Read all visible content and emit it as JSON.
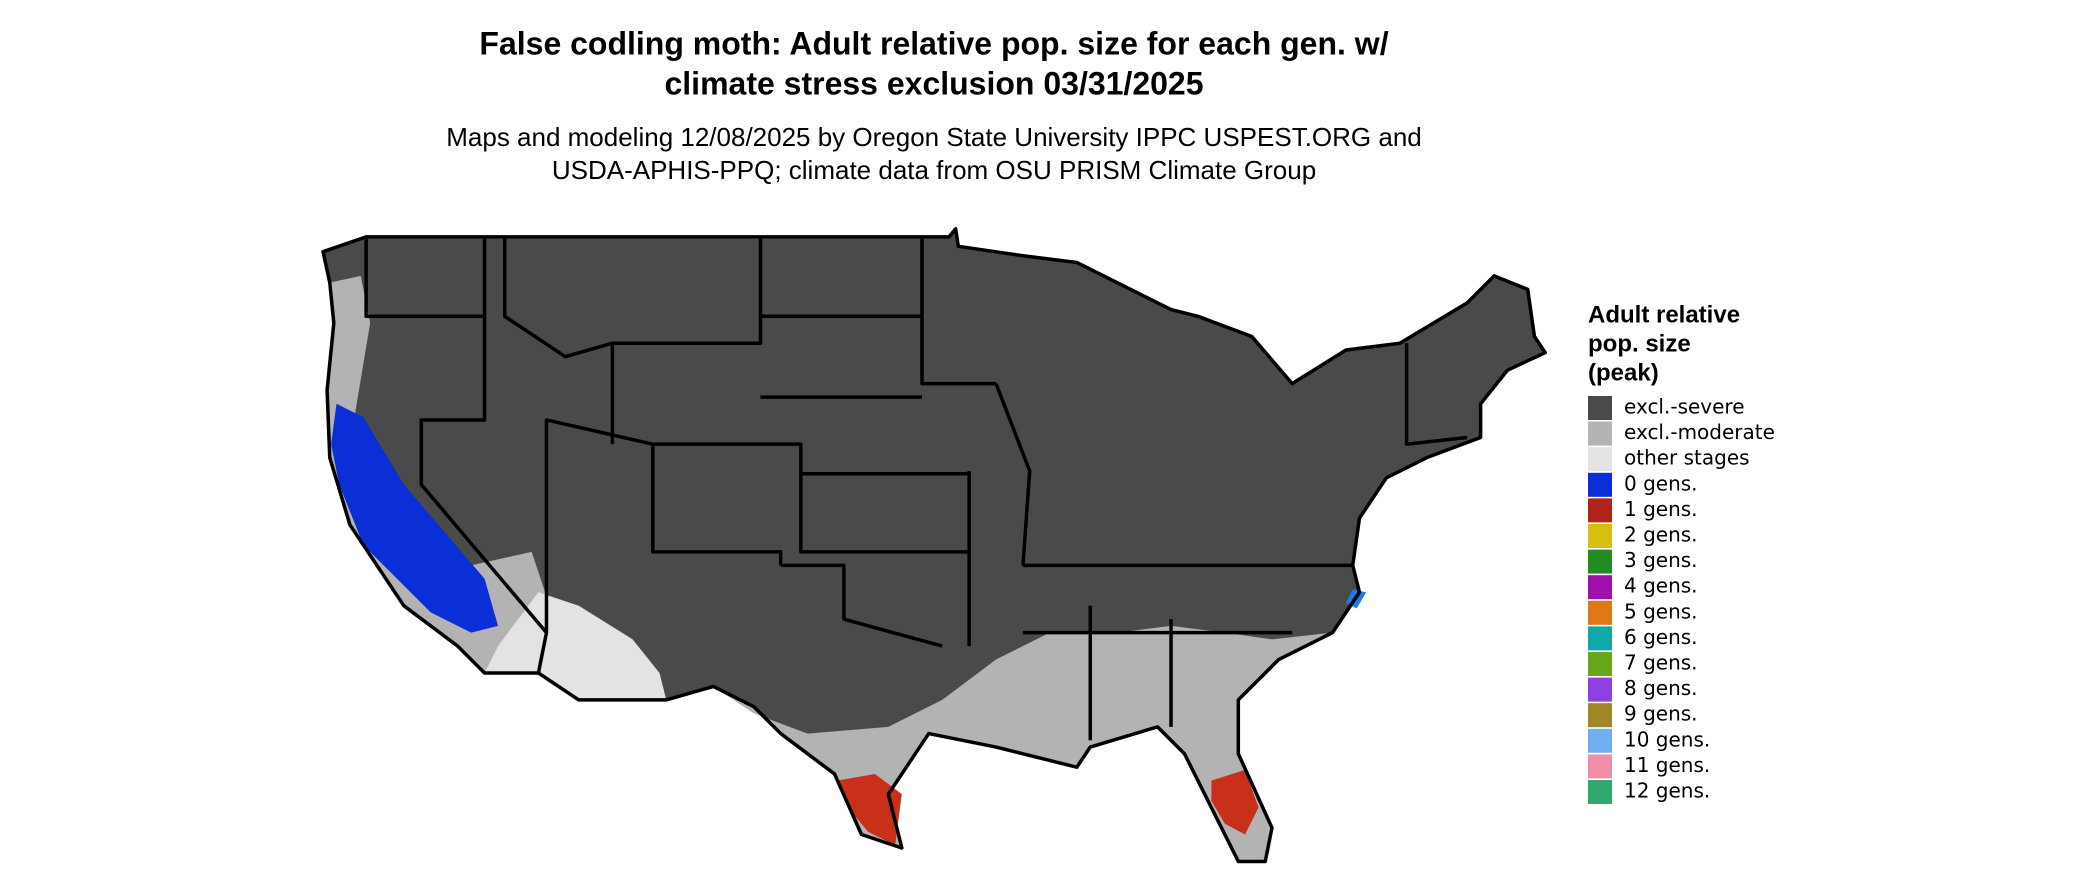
{
  "header": {
    "title": [
      "False codling moth: Adult relative pop. size for each gen. w/",
      "climate stress exclusion 03/31/2025"
    ],
    "subtitle": [
      "Maps and modeling 12/08/2025 by Oregon State University IPPC USPEST.ORG and",
      "USDA-APHIS-PPQ; climate data from OSU PRISM Climate Group"
    ]
  },
  "legend": {
    "title": [
      "Adult relative",
      "pop. size",
      "(peak)"
    ],
    "items": [
      {
        "label": "excl.-severe",
        "color": "#4a4a4a"
      },
      {
        "label": "excl.-moderate",
        "color": "#b3b3b3"
      },
      {
        "label": "other stages",
        "color": "#e3e3e3"
      },
      {
        "label": "0 gens.",
        "color": "#0a2fd6"
      },
      {
        "label": "1 gens.",
        "color": "#b0221a"
      },
      {
        "label": "2 gens.",
        "color": "#d8c010"
      },
      {
        "label": "3 gens.",
        "color": "#228b22"
      },
      {
        "label": "4 gens.",
        "color": "#a010a8"
      },
      {
        "label": "5 gens.",
        "color": "#e07818"
      },
      {
        "label": "6 gens.",
        "color": "#10a8a8"
      },
      {
        "label": "7 gens.",
        "color": "#68a818"
      },
      {
        "label": "8 gens.",
        "color": "#9040e0"
      },
      {
        "label": "9 gens.",
        "color": "#a08828"
      },
      {
        "label": "10 gens.",
        "color": "#70b0f0"
      },
      {
        "label": "11 gens.",
        "color": "#f090a8"
      },
      {
        "label": "12 gens.",
        "color": "#30a870"
      }
    ]
  }
}
